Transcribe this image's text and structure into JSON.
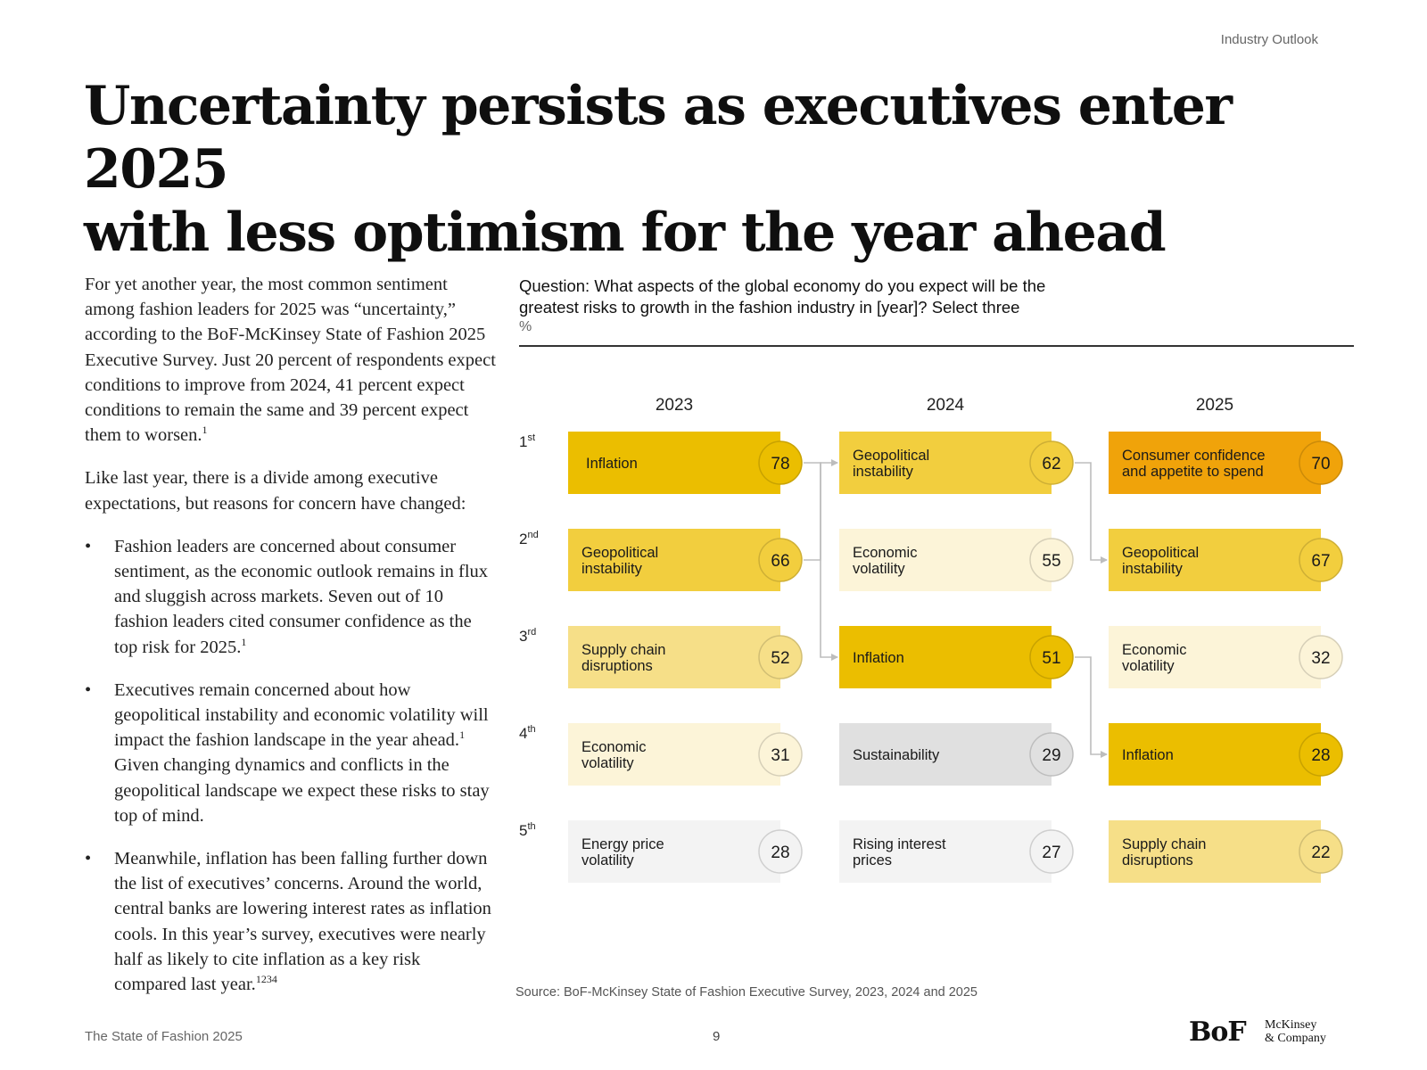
{
  "header": {
    "section_label": "Industry Outlook"
  },
  "headline": {
    "line1": "Uncertainty persists as executives enter 2025",
    "line2": "with less optimism for the year ahead"
  },
  "body": {
    "p1": "For yet another year, the most common sentiment among fashion leaders for 2025 was “uncertainty,” according to the BoF-McKinsey State of Fashion 2025 Executive Survey. Just 20 percent of respondents expect conditions to improve from 2024, 41 percent expect conditions to remain the same and 39 percent expect them to worsen.",
    "p1_ref": "1",
    "p2": "Like last year, there is a divide among executive expectations, but reasons for concern have changed:",
    "bullets": [
      {
        "text": "Fashion leaders are concerned about consumer sentiment, as the economic outlook remains in flux and sluggish across markets. Seven out of 10 fashion leaders cited consumer confidence as the top risk for 2025.",
        "ref": "1"
      },
      {
        "text_a": "Executives remain concerned about how geopolitical instability and economic volatility will impact the fashion landscape in the year ahead.",
        "ref": "1",
        "text_b": " Given changing dynamics and conflicts in the geopolitical landscape we expect these risks to stay top of mind."
      },
      {
        "text": "Meanwhile, inflation has been falling further down the list of executives’ concerns. Around the world, central banks are lowering interest rates as inflation cools. In this year’s survey, executives were nearly half as likely to cite inflation as a key risk compared last year.",
        "ref": "1234"
      }
    ]
  },
  "chart_data": {
    "type": "table",
    "question_line1": "Question: What aspects of the global economy do you expect will be the",
    "question_line2": "greatest risks to growth in the fashion industry in [year]? Select three",
    "unit": "%",
    "ranks": [
      {
        "num": "1",
        "suffix": "st"
      },
      {
        "num": "2",
        "suffix": "nd"
      },
      {
        "num": "3",
        "suffix": "rd"
      },
      {
        "num": "4",
        "suffix": "th"
      },
      {
        "num": "5",
        "suffix": "th"
      }
    ],
    "columns": [
      {
        "year": "2023",
        "items": [
          {
            "label": [
              "Inflation"
            ],
            "value": 78,
            "color": "#EBBE00"
          },
          {
            "label": [
              "Geopolitical",
              "instability"
            ],
            "value": 66,
            "color": "#F2CE3E"
          },
          {
            "label": [
              "Supply chain",
              "disruptions"
            ],
            "value": 52,
            "color": "#F6DF88"
          },
          {
            "label": [
              "Economic",
              "volatility"
            ],
            "value": 31,
            "color": "#FCF4D8"
          },
          {
            "label": [
              "Energy price",
              "volatility"
            ],
            "value": 28,
            "color": "#F3F3F3"
          }
        ]
      },
      {
        "year": "2024",
        "items": [
          {
            "label": [
              "Geopolitical",
              "instability"
            ],
            "value": 62,
            "color": "#F2CE3E"
          },
          {
            "label": [
              "Economic",
              "volatility"
            ],
            "value": 55,
            "color": "#FCF4D8"
          },
          {
            "label": [
              "Inflation"
            ],
            "value": 51,
            "color": "#EBBE00"
          },
          {
            "label": [
              "Sustainability"
            ],
            "value": 29,
            "color": "#E0E0E0"
          },
          {
            "label": [
              "Rising interest",
              "prices"
            ],
            "value": 27,
            "color": "#F3F3F3"
          }
        ]
      },
      {
        "year": "2025",
        "items": [
          {
            "label": [
              "Consumer confidence",
              "and appetite to spend"
            ],
            "value": 70,
            "color": "#F0A30A"
          },
          {
            "label": [
              "Geopolitical",
              "instability"
            ],
            "value": 67,
            "color": "#F2CE3E"
          },
          {
            "label": [
              "Economic",
              "volatility"
            ],
            "value": 32,
            "color": "#FCF4D8"
          },
          {
            "label": [
              "Inflation"
            ],
            "value": 28,
            "color": "#EBBE00"
          },
          {
            "label": [
              "Supply chain",
              "disruptions"
            ],
            "value": 22,
            "color": "#F6DF88"
          }
        ]
      }
    ],
    "connectors": [
      {
        "from": [
          0,
          0
        ],
        "to": [
          1,
          2
        ]
      },
      {
        "from": [
          0,
          1
        ],
        "to": [
          1,
          0
        ]
      },
      {
        "from": [
          1,
          0
        ],
        "to": [
          2,
          1
        ]
      },
      {
        "from": [
          1,
          2
        ],
        "to": [
          2,
          3
        ]
      }
    ],
    "connector_color": "#BDBDBD",
    "source": "Source: BoF-McKinsey State of Fashion Executive Survey, 2023, 2024 and 2025"
  },
  "footer": {
    "publication": "The State of Fashion 2025",
    "page": "9",
    "logo_bof": "BoF",
    "logo_mck_1": "McKinsey",
    "logo_mck_2": "& Company"
  }
}
